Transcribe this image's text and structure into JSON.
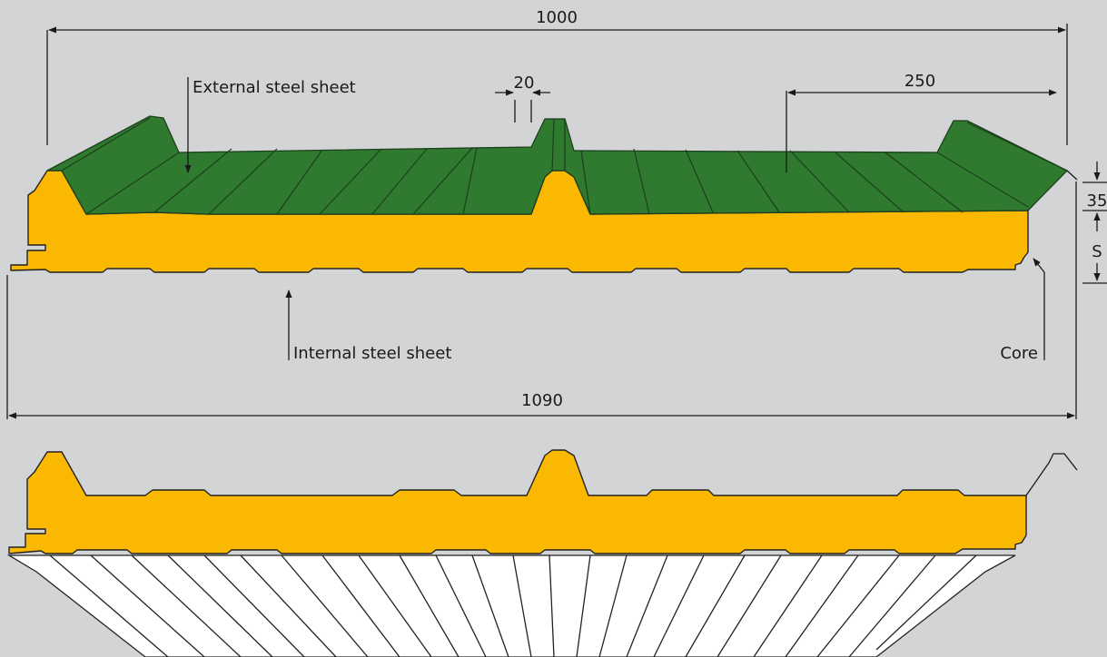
{
  "labels": {
    "external_sheet": "External steel sheet",
    "internal_sheet": "Internal steel sheet",
    "core": "Core"
  },
  "dimensions": {
    "total_cover": "1000",
    "rib_width": "20",
    "rib_pitch": "250",
    "overall_width": "1090",
    "rib_height": "35",
    "thickness": "S"
  },
  "colors": {
    "background": "#d3d4d6",
    "external_sheet": "#2f7a2f",
    "core": "#fbb800",
    "lamella": "#ffffff"
  }
}
